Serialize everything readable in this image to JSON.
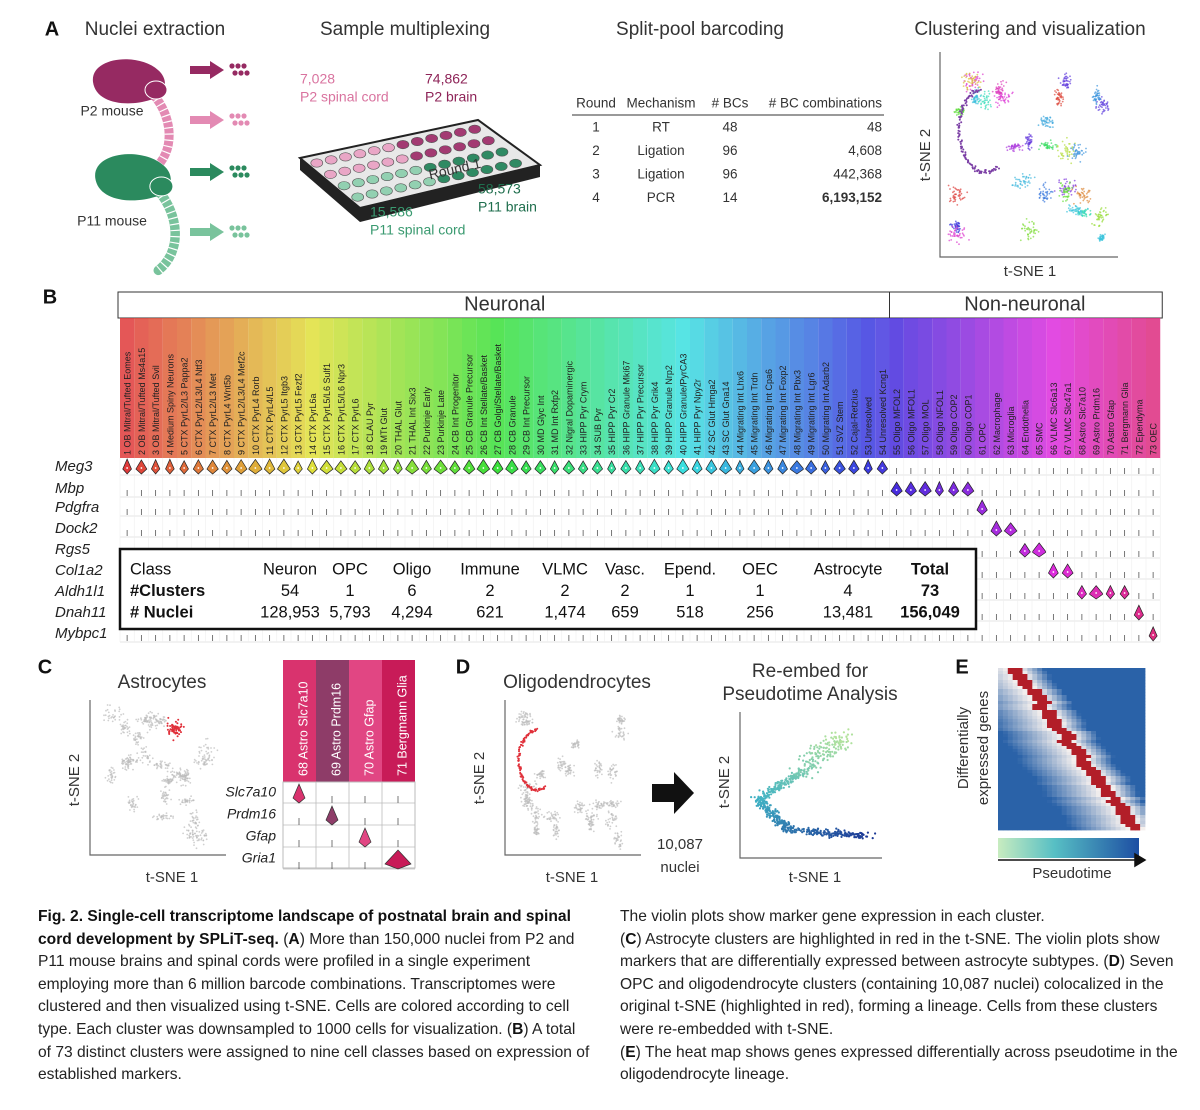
{
  "panel_a": {
    "letter": "A",
    "nuclei": {
      "title": "Nuclei extraction",
      "p2": "P2 mouse",
      "p11": "P11 mouse"
    },
    "multiplex": {
      "title": "Sample multiplexing",
      "round": "Round 1",
      "samples": [
        {
          "count": "7,028",
          "label": "P2 spinal cord"
        },
        {
          "count": "74,862",
          "label": "P2 brain"
        },
        {
          "count": "58,573",
          "label": "P11 brain"
        },
        {
          "count": "15,586",
          "label": "P11 spinal cord"
        }
      ]
    },
    "barcoding": {
      "title": "Split-pool barcoding",
      "header": [
        "Round",
        "Mechanism",
        "# BCs",
        "# BC combinations"
      ],
      "rows": [
        [
          "1",
          "RT",
          "48",
          "48"
        ],
        [
          "2",
          "Ligation",
          "96",
          "4,608"
        ],
        [
          "3",
          "Ligation",
          "96",
          "442,368"
        ],
        [
          "4",
          "PCR",
          "14",
          "6,193,152"
        ]
      ]
    },
    "clustering": {
      "title": "Clustering and visualization",
      "ylabel": "t-SNE 2",
      "xlabel": "t-SNE 1"
    }
  },
  "panel_b": {
    "letter": "B",
    "groups": [
      "Neuronal",
      "Non-neuronal"
    ],
    "clusters": [
      "1 OB Mitral/Tufted Eomes",
      "2 OB Mitral/Tufted Ms4a15",
      "3 OB Mitral/Tufted Svil",
      "4 Medium Spiny Neurons",
      "5 CTX PyrL2/L3 Pappa2",
      "6 CTX PyrL2/L3/L4 Ntf3",
      "7 CTX PyrL2/L3 Met",
      "8 CTX PyrL4 Wnt5b",
      "9 CTX PyrL2/L3/L4 Mef2c",
      "10 CTX PyrL4 Rorb",
      "11 CTX PyrL4/L5",
      "12 CTX PyrL5 Itgb3",
      "13 CTX PyrL5 Fezf2",
      "14 CTX PyrL6a",
      "15 CTX PyrL5/L6 Sulf1",
      "16 CTX PyrL5/L6 Npr3",
      "17 CTX PyrL6",
      "18 CLAU Pyr",
      "19 MTt Glut",
      "20 THAL Glut",
      "21 THAL Int Six3",
      "22 Purkinje Early",
      "23 Purkinje Late",
      "24 CB Int Progenitor",
      "25 CB Granule Precursor",
      "26 CB Int Stellate/Basket",
      "27 CB Golgi/Stellate/Basket",
      "28 CB Granule",
      "29 CB Int Precursor",
      "30 MD Glyc Int",
      "31 MD Int Rxfp2",
      "32 Nigral Dopaminergic",
      "33 HIPP Pyr Crym",
      "34 SUB Pyr",
      "35 HIPP Pyr Cr2",
      "36 HIPP Granule Mki67",
      "37 HIPP Pyr Precursor",
      "38 HIPP Pyr Grik4",
      "39 HIPP Granule Nrp2",
      "40 HIPP Granule/PyrCA3",
      "41 HIPP Pyr Npy2r",
      "42 SC Glut Hmga2",
      "43 SC Glut Gna14",
      "44 Migrating Int Lhx6",
      "45 Migrating Int Trdn",
      "46 Migrating Int Cpa6",
      "47 Migrating Int Foxp2",
      "48 Migrating Int Pbx3",
      "49 Migrating Int Lgr6",
      "50 Migrating Int Adarb2",
      "51 SVZ Stem",
      "52 Cajal-Retzius",
      "53 Unresolved",
      "54 Unresolved Kcng1",
      "55 Oligo MFOL2",
      "56 Oligo MFOL1",
      "57 Oligo MOL",
      "58 Oligo NFOL1",
      "59 Oligo COP2",
      "60 Oligo COP1",
      "61 OPC",
      "62 Macrophage",
      "63 Microglia",
      "64 Endothelia",
      "65 SMC",
      "66 VLMC Slc6a13",
      "67 VLMC Slc47a1",
      "68 Astro Slc7a10",
      "69 Astro Prdm16",
      "70 Astro Gfap",
      "71 Bergmann Glia",
      "72 Ependyma",
      "73 OEC"
    ],
    "genes": [
      "Meg3",
      "Mbp",
      "Pdgfra",
      "Dock2",
      "Rgs5",
      "Col1a2",
      "Aldh1l1",
      "Dnah11",
      "Mybpc1"
    ],
    "summary": [
      [
        "Class",
        "Neuron",
        "OPC",
        "Oligo",
        "Immune",
        "VLMC",
        "Vasc.",
        "Epend.",
        "OEC",
        "Astrocyte",
        "Total"
      ],
      [
        "#Clusters",
        "54",
        "1",
        "6",
        "2",
        "2",
        "2",
        "1",
        "1",
        "4",
        "73"
      ],
      [
        "# Nuclei",
        "128,953",
        "5,793",
        "4,294",
        "621",
        "1,474",
        "659",
        "518",
        "256",
        "13,481",
        "156,049"
      ]
    ]
  },
  "panel_c": {
    "letter": "C",
    "title": "Astrocytes",
    "ylabel": "t-SNE 2",
    "xlabel": "t-SNE 1",
    "clusters": [
      "68 Astro Slc7a10",
      "69 Astro Prdm16",
      "70 Astro Gfap",
      "71 Bergmann Glia"
    ],
    "genes": [
      "Slc7a10",
      "Prdm16",
      "Gfap",
      "Gria1"
    ]
  },
  "panel_d": {
    "letter": "D",
    "title": "Oligodendrocytes",
    "ylabel": "t-SNE 2",
    "xlabel": "t-SNE 1",
    "count": "10,087",
    "count_unit": "nuclei",
    "reembed_title": [
      "Re-embed for",
      "Pseudotime Analysis"
    ],
    "reembed_ylabel": "t-SNE 2",
    "reembed_xlabel": "t-SNE 1"
  },
  "panel_e": {
    "letter": "E",
    "ylabel": [
      "Differentially",
      "expressed genes"
    ],
    "xlabel": "Pseudotime"
  },
  "caption": {
    "left": [
      {
        "text": "Fig. 2. Single-cell transcriptome landscape of postnatal brain and spinal cord development by SPLiT-seq.",
        "bold": true
      },
      {
        "text": " (",
        "bold": false
      },
      {
        "text": "A",
        "bold": true
      },
      {
        "text": ") More than 150,000 nuclei from P2 and P11 mouse brains and spinal cords were profiled in a single experiment employing more than 6 million barcode combinations. Transcriptomes were clustered and then visualized using t-SNE. Cells are colored according to cell type. Each cluster was downsampled to 1000 cells for visualization. (",
        "bold": false
      },
      {
        "text": "B",
        "bold": true
      },
      {
        "text": ") A total of 73 distinct clusters were assigned to nine cell classes based on expression of established markers.",
        "bold": false
      }
    ],
    "right": [
      [
        {
          "text": "The violin plots show marker gene expression in each cluster.",
          "bold": false
        }
      ],
      [
        {
          "text": "(",
          "bold": false
        },
        {
          "text": "C",
          "bold": true
        },
        {
          "text": ") Astrocyte clusters are highlighted in red in the t-SNE. The violin plots show markers that are differentially expressed between astrocyte subtypes. (",
          "bold": false
        },
        {
          "text": "D",
          "bold": true
        },
        {
          "text": ") Seven OPC and oligodendrocyte clusters (containing 10,087 nuclei) colocalized in the original t-SNE (highlighted in red), forming a lineage. Cells from these clusters were re-embedded with t-SNE.",
          "bold": false
        }
      ],
      [
        {
          "text": "(",
          "bold": false
        },
        {
          "text": "E",
          "bold": true
        },
        {
          "text": ") The heat map shows genes expressed differentially across pseudotime in the oligodendrocyte lineage.",
          "bold": false
        }
      ]
    ]
  }
}
